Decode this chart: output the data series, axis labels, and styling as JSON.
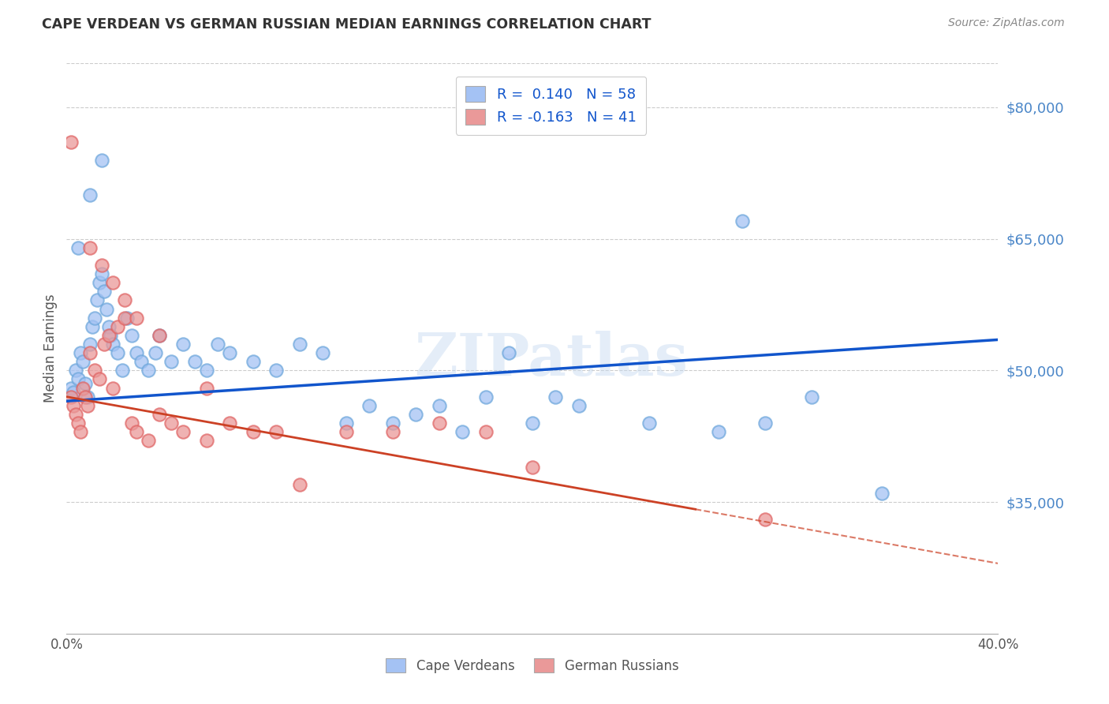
{
  "title": "CAPE VERDEAN VS GERMAN RUSSIAN MEDIAN EARNINGS CORRELATION CHART",
  "source": "Source: ZipAtlas.com",
  "ylabel": "Median Earnings",
  "x_min": 0.0,
  "x_max": 0.4,
  "y_min": 20000,
  "y_max": 85000,
  "x_ticks": [
    0.0,
    0.1,
    0.2,
    0.3,
    0.4
  ],
  "x_tick_labels": [
    "0.0%",
    "",
    "",
    "",
    "40.0%"
  ],
  "y_ticks": [
    35000,
    50000,
    65000,
    80000
  ],
  "y_tick_labels": [
    "$35,000",
    "$50,000",
    "$65,000",
    "$80,000"
  ],
  "legend_labels": [
    "Cape Verdeans",
    "German Russians"
  ],
  "R_blue": 0.14,
  "N_blue": 58,
  "R_pink": -0.163,
  "N_pink": 41,
  "blue_color": "#a4c2f4",
  "pink_color": "#ea9999",
  "blue_fill_color": "#6fa8dc",
  "pink_fill_color": "#e06666",
  "blue_line_color": "#1155cc",
  "pink_line_color": "#cc4125",
  "watermark": "ZIPatlas",
  "blue_line_x0": 0.0,
  "blue_line_y0": 46500,
  "blue_line_x1": 0.4,
  "blue_line_y1": 53500,
  "pink_line_x0": 0.0,
  "pink_line_y0": 47000,
  "pink_line_x1": 0.4,
  "pink_line_y1": 28000,
  "blue_scatter_x": [
    0.002,
    0.003,
    0.004,
    0.005,
    0.006,
    0.007,
    0.008,
    0.009,
    0.01,
    0.011,
    0.012,
    0.013,
    0.014,
    0.015,
    0.016,
    0.017,
    0.018,
    0.019,
    0.02,
    0.022,
    0.024,
    0.026,
    0.028,
    0.03,
    0.032,
    0.035,
    0.038,
    0.04,
    0.045,
    0.05,
    0.055,
    0.06,
    0.065,
    0.07,
    0.08,
    0.09,
    0.1,
    0.11,
    0.12,
    0.13,
    0.14,
    0.15,
    0.16,
    0.17,
    0.18,
    0.19,
    0.2,
    0.21,
    0.22,
    0.25,
    0.28,
    0.3,
    0.32,
    0.35,
    0.005,
    0.01,
    0.015,
    0.29
  ],
  "blue_scatter_y": [
    48000,
    47500,
    50000,
    49000,
    52000,
    51000,
    48500,
    47000,
    53000,
    55000,
    56000,
    58000,
    60000,
    61000,
    59000,
    57000,
    55000,
    54000,
    53000,
    52000,
    50000,
    56000,
    54000,
    52000,
    51000,
    50000,
    52000,
    54000,
    51000,
    53000,
    51000,
    50000,
    53000,
    52000,
    51000,
    50000,
    53000,
    52000,
    44000,
    46000,
    44000,
    45000,
    46000,
    43000,
    47000,
    52000,
    44000,
    47000,
    46000,
    44000,
    43000,
    44000,
    47000,
    36000,
    64000,
    70000,
    74000,
    67000
  ],
  "pink_scatter_x": [
    0.002,
    0.003,
    0.004,
    0.005,
    0.006,
    0.007,
    0.008,
    0.009,
    0.01,
    0.012,
    0.014,
    0.016,
    0.018,
    0.02,
    0.022,
    0.025,
    0.028,
    0.03,
    0.035,
    0.04,
    0.045,
    0.05,
    0.06,
    0.07,
    0.08,
    0.09,
    0.1,
    0.12,
    0.14,
    0.16,
    0.18,
    0.2,
    0.01,
    0.015,
    0.02,
    0.025,
    0.03,
    0.04,
    0.06,
    0.3,
    0.002
  ],
  "pink_scatter_y": [
    47000,
    46000,
    45000,
    44000,
    43000,
    48000,
    47000,
    46000,
    52000,
    50000,
    49000,
    53000,
    54000,
    48000,
    55000,
    56000,
    44000,
    43000,
    42000,
    45000,
    44000,
    43000,
    42000,
    44000,
    43000,
    43000,
    37000,
    43000,
    43000,
    44000,
    43000,
    39000,
    64000,
    62000,
    60000,
    58000,
    56000,
    54000,
    48000,
    33000,
    76000
  ]
}
